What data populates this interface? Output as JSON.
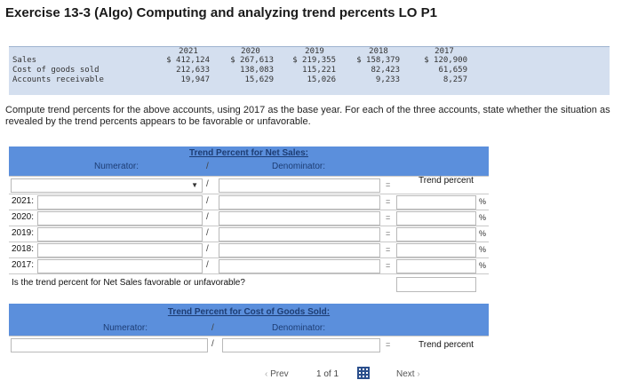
{
  "title": "Exercise 13-3 (Algo) Computing and analyzing trend percents LO P1",
  "data_table": {
    "years": [
      "2021",
      "2020",
      "2019",
      "2018",
      "2017"
    ],
    "rows": [
      {
        "label": "Sales",
        "values": [
          "$ 412,124",
          "$ 267,613",
          "$ 219,355",
          "$ 158,379",
          "$ 120,900"
        ]
      },
      {
        "label": "Cost of goods sold",
        "values": [
          "212,633",
          "138,083",
          "115,221",
          "82,423",
          "61,659"
        ]
      },
      {
        "label": "Accounts receivable",
        "values": [
          "19,947",
          "15,629",
          "15,026",
          "9,233",
          "8,257"
        ]
      }
    ]
  },
  "instructions": "Compute trend percents for the above accounts, using 2017 as the base year. For each of the three accounts, state whether the situation as revealed by the trend percents appears to be favorable or unfavorable.",
  "sales_panel": {
    "title": "Trend Percent for Net Sales:",
    "numerator_label": "Numerator:",
    "slash": "/",
    "denominator_label": "Denominator:",
    "equals": "=",
    "trend_header": "Trend percent",
    "rows": [
      "2021:",
      "2020:",
      "2019:",
      "2018:",
      "2017:"
    ],
    "pct_symbol": "%",
    "question": "Is the trend percent for Net Sales favorable or unfavorable?"
  },
  "cogs_panel": {
    "title": "Trend Percent for Cost of Goods Sold:",
    "numerator_label": "Numerator:",
    "slash": "/",
    "denominator_label": "Denominator:",
    "equals": "=",
    "trend_header": "Trend percent"
  },
  "pagination": {
    "prev": "Prev",
    "page_current": "1",
    "page_sep": "of",
    "page_total": "1",
    "next": "Next"
  }
}
